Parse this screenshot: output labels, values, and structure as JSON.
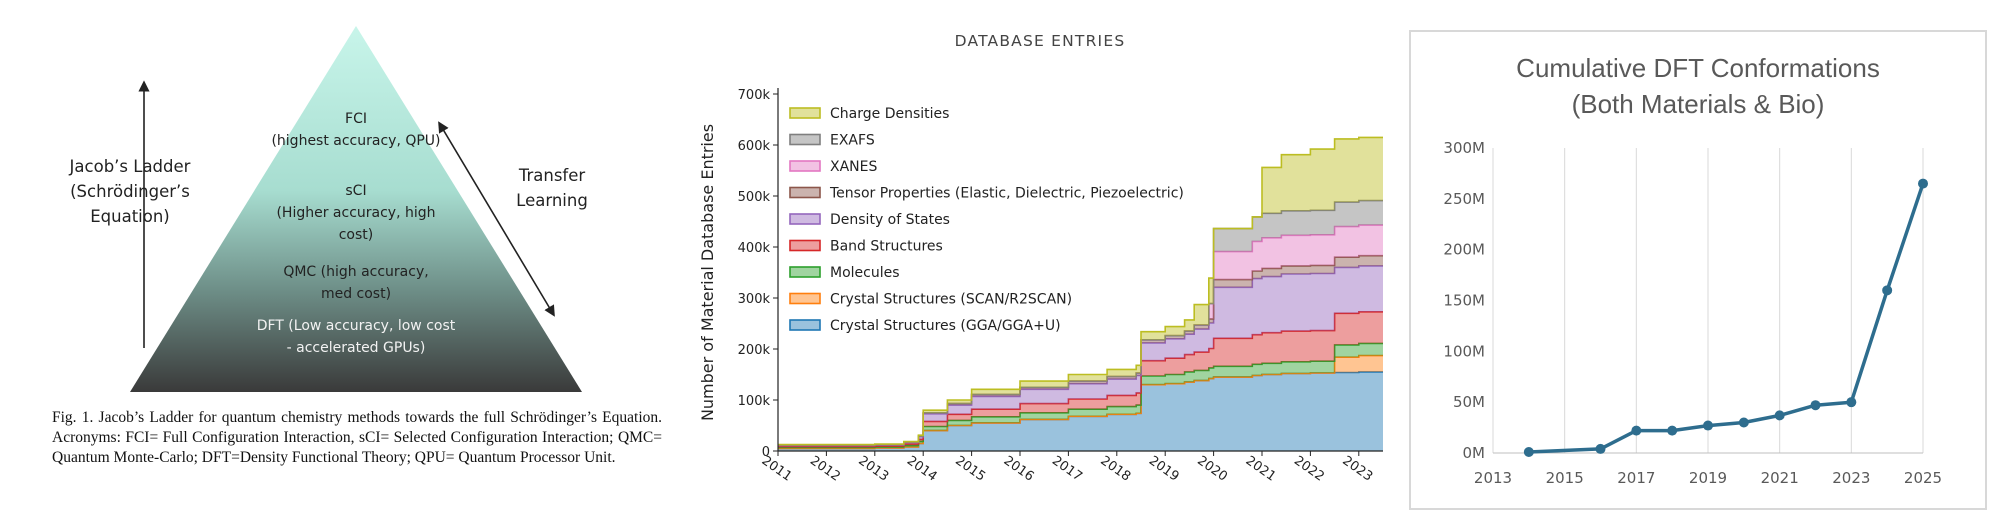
{
  "fig1": {
    "apex_color": "#c8f5ea",
    "base_color": "#3a3a3a",
    "levels": [
      {
        "lines": [
          "FCI",
          "(highest accuracy, QPU)"
        ]
      },
      {
        "lines": [
          "sCI",
          "(Higher accuracy, high",
          "cost)"
        ]
      },
      {
        "lines": [
          "QMC (high accuracy,",
          "med cost)"
        ]
      },
      {
        "lines": [
          "DFT (Low accuracy, low cost",
          "- accelerated GPUs)"
        ]
      }
    ],
    "left_label": [
      "Jacob’s Ladder",
      "(Schrödinger’s",
      "Equation)"
    ],
    "right_label": [
      "Transfer",
      "Learning"
    ],
    "caption": "Fig. 1.  Jacob’s Ladder for quantum chemistry methods towards the full Schrödinger’s Equation. Acronyms: FCI= Full Configuration Interaction, sCI= Selected Configuration Interaction; QMC= Quantum Monte-Carlo; DFT=Density Functional Theory; QPU= Quantum Processor Unit."
  },
  "database": {
    "title": "DATABASE ENTRIES"
  },
  "conformations": {
    "title_lines": [
      "Cumulative DFT Conformations",
      "(Both Materials & Bio)"
    ]
  },
  "chart_data": [
    {
      "type": "area",
      "title": "DATABASE ENTRIES",
      "ylabel": "Number of Material Database Entries",
      "xlabel": "",
      "x": [
        2011.0,
        2013.0,
        2013.6,
        2013.9,
        2014.0,
        2014.5,
        2015.0,
        2016.0,
        2017.0,
        2017.8,
        2018.4,
        2018.5,
        2019.0,
        2019.4,
        2019.6,
        2019.9,
        2020.0,
        2020.8,
        2021.0,
        2021.4,
        2022.0,
        2022.5,
        2023.0,
        2023.5
      ],
      "xticks": [
        "2011",
        "2012",
        "2013",
        "2014",
        "2015",
        "2016",
        "2017",
        "2018",
        "2019",
        "2020",
        "2021",
        "2022",
        "2023"
      ],
      "yticks": [
        "0",
        "100k",
        "200k",
        "300k",
        "400k",
        "500k",
        "600k",
        "700k"
      ],
      "ylim": [
        0,
        700000
      ],
      "xlim": [
        2011,
        2023.5
      ],
      "legend_position": "top-left",
      "series": [
        {
          "name": "Crystal Structures (GGA/GGA+U)",
          "color": "#1f77b4",
          "values": [
            5000,
            6000,
            8000,
            15000,
            40000,
            50000,
            55000,
            62000,
            68000,
            72000,
            74000,
            130000,
            132000,
            135000,
            138000,
            142000,
            145000,
            148000,
            150000,
            152000,
            153000,
            154000,
            155000,
            155000
          ]
        },
        {
          "name": "Crystal Structures (SCAN/R2SCAN)",
          "color": "#ff7f0e",
          "values": [
            0,
            0,
            0,
            0,
            0,
            0,
            0,
            0,
            0,
            0,
            0,
            0,
            0,
            0,
            0,
            0,
            0,
            0,
            0,
            0,
            0,
            30000,
            32000,
            32000
          ]
        },
        {
          "name": "Molecules",
          "color": "#2ca02c",
          "values": [
            2000,
            2000,
            3000,
            4000,
            8000,
            10000,
            12000,
            13000,
            14000,
            15000,
            16000,
            17000,
            18000,
            20000,
            20000,
            21000,
            21000,
            22000,
            22000,
            23000,
            23000,
            24000,
            24000,
            24000
          ]
        },
        {
          "name": "Band Structures",
          "color": "#d62728",
          "values": [
            2000,
            2000,
            3000,
            4000,
            10000,
            12000,
            15000,
            18000,
            20000,
            22000,
            24000,
            30000,
            32000,
            34000,
            36000,
            38000,
            55000,
            58000,
            60000,
            60000,
            60000,
            62000,
            62000,
            62000
          ]
        },
        {
          "name": "Density of States",
          "color": "#9467bd",
          "values": [
            2000,
            2000,
            3000,
            5000,
            15000,
            18000,
            25000,
            28000,
            30000,
            32000,
            34000,
            35000,
            38000,
            40000,
            45000,
            50000,
            100000,
            110000,
            110000,
            112000,
            112000,
            90000,
            90000,
            90000
          ]
        },
        {
          "name": "Tensor Properties (Elastic, Dielectric, Piezoelectric)",
          "color": "#8c564b",
          "values": [
            500,
            500,
            500,
            1000,
            2000,
            3000,
            4000,
            4000,
            5000,
            5000,
            5000,
            6000,
            6000,
            6000,
            8000,
            8000,
            15000,
            15000,
            16000,
            16000,
            16000,
            20000,
            20000,
            20000
          ]
        },
        {
          "name": "XANES",
          "color": "#e377c2",
          "values": [
            0,
            0,
            0,
            0,
            0,
            0,
            0,
            0,
            0,
            0,
            0,
            0,
            0,
            0,
            0,
            30000,
            55000,
            58000,
            60000,
            60000,
            60000,
            60000,
            60000,
            60000
          ]
        },
        {
          "name": "EXAFS",
          "color": "#7f7f7f",
          "values": [
            0,
            0,
            0,
            0,
            0,
            0,
            0,
            0,
            0,
            0,
            0,
            0,
            0,
            0,
            0,
            0,
            45000,
            48000,
            48000,
            48000,
            48000,
            48000,
            48000,
            48000
          ]
        },
        {
          "name": "Charge Densities",
          "color": "#bcbd22",
          "values": [
            1000,
            1000,
            1000,
            2000,
            5000,
            7000,
            10000,
            12000,
            13000,
            14000,
            15000,
            16000,
            18000,
            22000,
            40000,
            50000,
            0,
            0,
            90000,
            110000,
            120000,
            124000,
            124000,
            124000
          ]
        }
      ]
    },
    {
      "type": "line",
      "title": "Cumulative DFT Conformations (Both Materials & Bio)",
      "xlabel": "",
      "ylabel": "",
      "x": [
        2014,
        2016,
        2017,
        2018,
        2019,
        2020,
        2021,
        2022,
        2023,
        2024,
        2025
      ],
      "values": [
        1,
        4,
        22,
        22,
        27,
        30,
        37,
        47,
        50,
        160,
        265
      ],
      "xticks": [
        "2013",
        "2015",
        "2017",
        "2019",
        "2021",
        "2023",
        "2025"
      ],
      "yticks": [
        "0M",
        "50M",
        "100M",
        "150M",
        "200M",
        "250M",
        "300M"
      ],
      "xlim": [
        2013,
        2025
      ],
      "ylim": [
        0,
        300
      ],
      "color": "#2e6d8e",
      "grid": "vertical"
    }
  ]
}
